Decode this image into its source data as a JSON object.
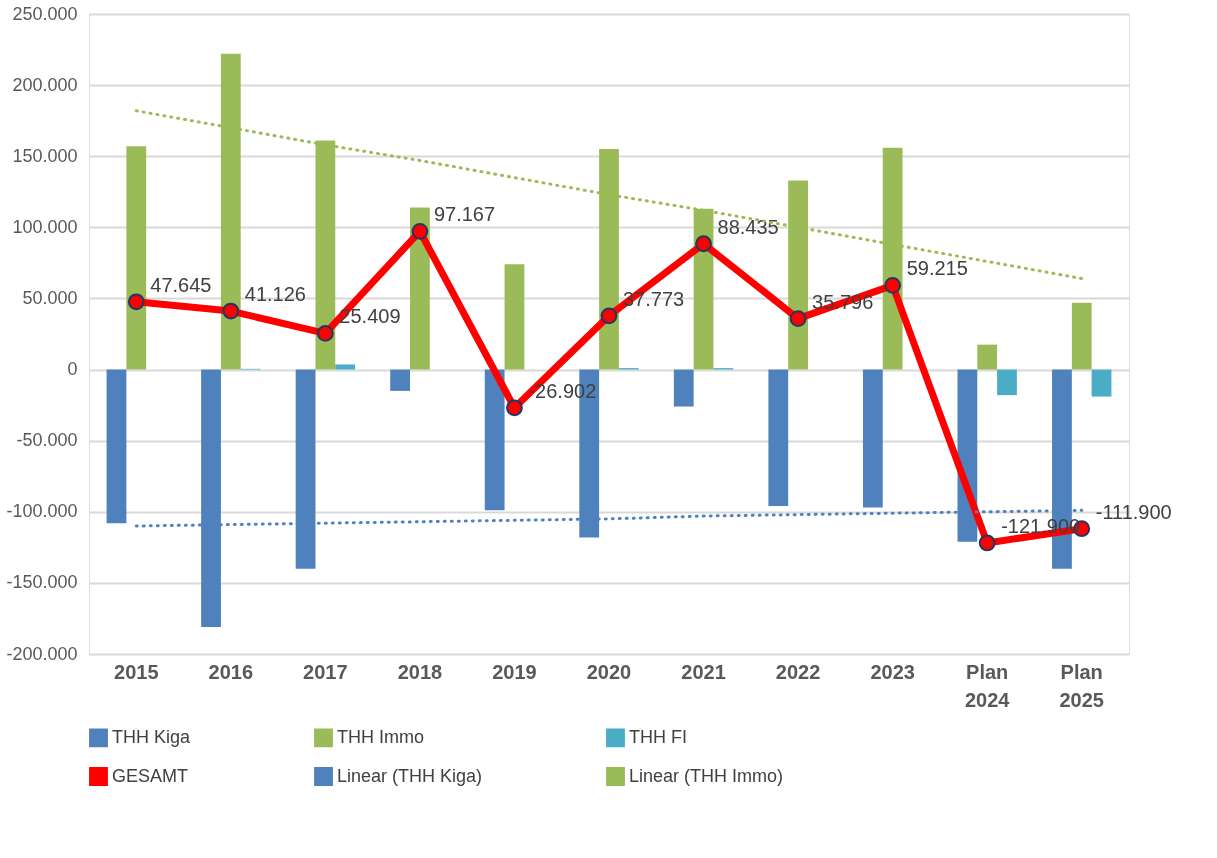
{
  "chart_data": {
    "type": "bar",
    "categories": [
      "2015",
      "2016",
      "2017",
      "2018",
      "2019",
      "2020",
      "2021",
      "2022",
      "2023",
      "Plan 2024",
      "Plan 2025"
    ],
    "series": [
      {
        "name": "THH Kiga",
        "color": "#4f81bd",
        "values": [
          -108000,
          -181000,
          -140000,
          -15000,
          -99000,
          -118000,
          -26000,
          -96000,
          -97000,
          -121000,
          -140000
        ]
      },
      {
        "name": "THH Immo",
        "color": "#9bbb59",
        "values": [
          157000,
          222000,
          161000,
          114000,
          74000,
          155000,
          113000,
          133000,
          156000,
          17500,
          47000
        ]
      },
      {
        "name": "THH FI",
        "color": "#4bacc6",
        "values": [
          null,
          500,
          3500,
          null,
          null,
          1000,
          1000,
          null,
          0,
          -18000,
          -19000
        ]
      },
      {
        "name": "GESAMT",
        "type": "line",
        "color": "#ff0000",
        "marker": "circle",
        "line_style": "solid",
        "values": [
          47645,
          41126,
          25409,
          97167,
          -26902,
          37773,
          88435,
          35796,
          59215,
          -121900,
          -111900
        ],
        "value_labels": [
          "47.645",
          "41.126",
          "25.409",
          "97.167",
          "-26.902",
          "37.773",
          "88.435",
          "35.796",
          "59.215",
          "-121.900",
          "-111.900"
        ]
      },
      {
        "name": "Linear (THH Kiga)",
        "type": "line",
        "color": "#4f81bd",
        "line_style": "dotted",
        "marker": "none",
        "values": [
          -110000,
          -109000,
          -108000,
          -107000,
          -106000,
          -105000,
          -103000,
          -102000,
          -101000,
          -100000,
          -99000
        ]
      },
      {
        "name": "Linear (THH Immo)",
        "type": "line",
        "color": "#9bbb59",
        "line_style": "dotted",
        "marker": "none",
        "values": [
          182000,
          170000,
          158000,
          147000,
          135000,
          123000,
          112000,
          100000,
          88000,
          76000,
          64000
        ]
      }
    ],
    "ylim": [
      -200000,
      250000
    ],
    "yticks": [
      {
        "value": -200000,
        "label": "-200.000"
      },
      {
        "value": -150000,
        "label": "-150.000"
      },
      {
        "value": -100000,
        "label": "-100.000"
      },
      {
        "value": -50000,
        "label": "-50.000"
      },
      {
        "value": 0,
        "label": "0"
      },
      {
        "value": 50000,
        "label": "50.000"
      },
      {
        "value": 100000,
        "label": "100.000"
      },
      {
        "value": 150000,
        "label": "150.000"
      },
      {
        "value": 200000,
        "label": "200.000"
      },
      {
        "value": 250000,
        "label": "250.000"
      }
    ],
    "grid": "y",
    "legend": "bottom"
  }
}
